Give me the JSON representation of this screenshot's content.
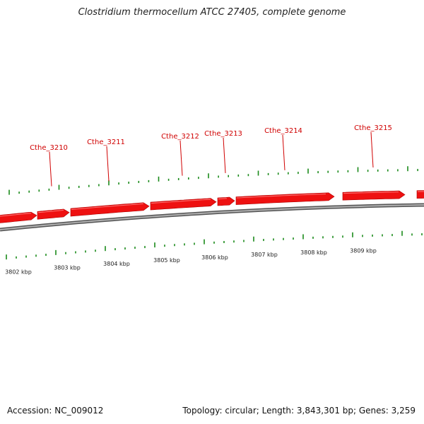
{
  "title": "Clostridium thermocellum ATCC 27405, complete genome",
  "footer": {
    "accession": "Accession: NC_009012",
    "topology": "Topology: circular; Length: 3,843,301 bp; Genes: 3,259"
  },
  "colors": {
    "gene": "#ee1111",
    "gene_label": "#d00000",
    "backbone": "#888888",
    "tick": "#1a8a1a"
  },
  "scale_labels": [
    "3802 kbp",
    "3803 kbp",
    "3804 kbp",
    "3805 kbp",
    "3806 kbp",
    "3807 kbp",
    "3808 kbp",
    "3809 kbp"
  ],
  "gene_labels": [
    "Cthe_3210",
    "Cthe_3211",
    "Cthe_3212",
    "Cthe_3213",
    "Cthe_3214",
    "Cthe_3215"
  ]
}
